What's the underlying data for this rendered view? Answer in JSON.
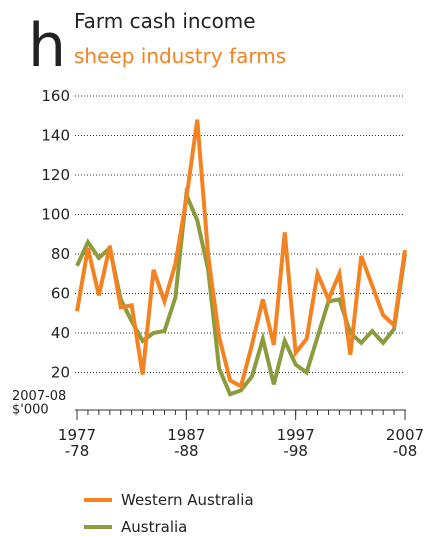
{
  "chart_data": {
    "type": "line",
    "panel": "h",
    "title": "Farm cash income",
    "subtitle": "sheep industry farms",
    "y_label": "2007-08\n$'000",
    "x": [
      1977,
      1978,
      1979,
      1980,
      1981,
      1982,
      1983,
      1984,
      1985,
      1986,
      1987,
      1988,
      1989,
      1990,
      1991,
      1992,
      1993,
      1994,
      1995,
      1996,
      1997,
      1998,
      1999,
      2000,
      2001,
      2002,
      2003,
      2004,
      2005,
      2006,
      2007
    ],
    "series": [
      {
        "name": "Western Australia",
        "color": "#f58220",
        "values": [
          51,
          83,
          59,
          84,
          53,
          54,
          19,
          72,
          56,
          75,
          108,
          148,
          79,
          38,
          16,
          13,
          34,
          57,
          34,
          91,
          30,
          37,
          70,
          57,
          70,
          29,
          79,
          64,
          49,
          44,
          82
        ]
      },
      {
        "name": "Australia",
        "color": "#8b9b3e",
        "values": [
          74,
          86,
          78,
          83,
          57,
          46,
          36,
          40,
          41,
          58,
          110,
          97,
          72,
          22,
          9,
          11,
          18,
          37,
          14,
          36,
          24,
          20,
          38,
          56,
          57,
          40,
          35,
          41,
          35,
          42,
          80
        ]
      }
    ],
    "xlim": [
      1977,
      2007
    ],
    "xticks": [
      {
        "value": 1977,
        "label": "1977\n-78"
      },
      {
        "value": 1987,
        "label": "1987\n-88"
      },
      {
        "value": 1997,
        "label": "1997\n-98"
      },
      {
        "value": 2007,
        "label": "2007\n-08"
      }
    ],
    "ylim": [
      0,
      160
    ],
    "yticks": [
      20,
      40,
      60,
      80,
      100,
      120,
      140,
      160
    ],
    "grid": true,
    "legend": "bottom"
  }
}
